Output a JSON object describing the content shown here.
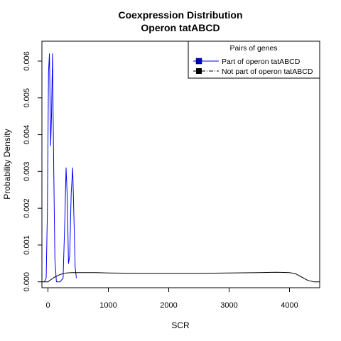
{
  "chart_data": {
    "type": "line",
    "title": "Coexpression Distribution",
    "subtitle": "Operon tatABCD",
    "xlabel": "SCR",
    "ylabel": "Probability Density",
    "xlim": [
      -100,
      4500
    ],
    "ylim": [
      -0.00016,
      0.00654
    ],
    "x_ticks": [
      0,
      1000,
      2000,
      3000,
      4000
    ],
    "x_tick_labels": [
      "0",
      "1000",
      "2000",
      "3000",
      "4000"
    ],
    "y_ticks": [
      0.0,
      0.001,
      0.002,
      0.003,
      0.004,
      0.005,
      0.006
    ],
    "y_tick_labels": [
      "0.000",
      "0.001",
      "0.002",
      "0.003",
      "0.004",
      "0.005",
      "0.006"
    ],
    "grid": false,
    "legend": {
      "title": "Pairs of genes",
      "placement": "top-right",
      "entries": [
        {
          "label": "Part of operon tatABCD",
          "color": "#0000ff",
          "fill": "#0000cc",
          "dash": "solid"
        },
        {
          "label": "Not part of operon tatABCD",
          "color": "#000000",
          "fill": "#000000",
          "dash": "dashdot"
        }
      ]
    },
    "series": [
      {
        "color": "#0000ff",
        "x": [
          -60,
          -30,
          -10,
          10,
          25,
          45,
          60,
          75,
          95,
          115,
          140,
          200,
          250,
          280,
          300,
          320,
          340,
          360,
          385,
          410,
          430,
          450,
          470
        ],
        "y": [
          0.0,
          0.0001,
          0.0019,
          0.0057,
          0.0062,
          0.0037,
          0.0046,
          0.0062,
          0.0031,
          0.0006,
          0.0,
          0.0,
          0.0001,
          0.0017,
          0.0031,
          0.0023,
          0.0005,
          0.0007,
          0.0024,
          0.0031,
          0.0018,
          0.0004,
          0.0001
        ]
      },
      {
        "color": "#000000",
        "x": [
          -100,
          0,
          100,
          200,
          300,
          400,
          500,
          800,
          1000,
          1500,
          2000,
          2500,
          3000,
          3500,
          3800,
          4000,
          4100,
          4200,
          4300,
          4400,
          4500
        ],
        "y": [
          0.0,
          0.0,
          0.00012,
          0.0002,
          0.00024,
          0.00025,
          0.00025,
          0.00025,
          0.00024,
          0.00023,
          0.00023,
          0.00023,
          0.00024,
          0.00025,
          0.00026,
          0.00025,
          0.00022,
          0.00013,
          4e-05,
          0.0,
          0.0
        ]
      }
    ]
  }
}
